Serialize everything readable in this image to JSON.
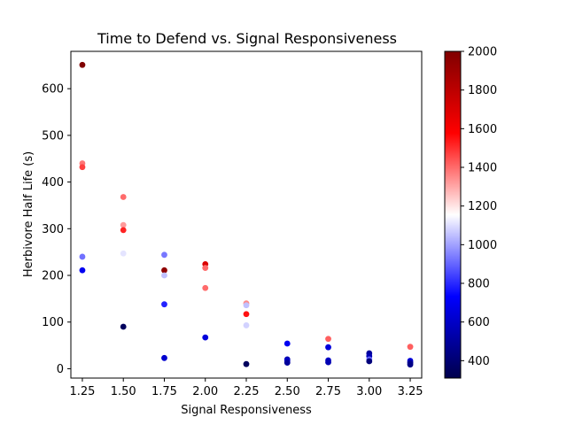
{
  "chart_data": {
    "type": "scatter",
    "title": "Time to Defend vs. Signal Responsiveness",
    "xlabel": "Signal Responsiveness",
    "ylabel": "Herbivore Half Life (s)",
    "xlim": [
      1.18,
      3.32
    ],
    "ylim": [
      -20,
      680
    ],
    "xticks": [
      "1.25",
      "1.50",
      "1.75",
      "2.00",
      "2.25",
      "2.50",
      "2.75",
      "3.00",
      "3.25"
    ],
    "yticks": [
      "0",
      "100",
      "200",
      "300",
      "400",
      "500",
      "600"
    ],
    "grid": false,
    "colormap": "seismic",
    "colorbar": {
      "min": 310,
      "max": 2000,
      "ticks": [
        "400",
        "600",
        "800",
        "1000",
        "1200",
        "1400",
        "1600",
        "1800",
        "2000"
      ],
      "stops": [
        "#00004c",
        "#0000ff",
        "#ffffff",
        "#ff0000",
        "#800000"
      ]
    },
    "points": [
      {
        "x": 1.25,
        "y": 651,
        "c": 2000
      },
      {
        "x": 1.25,
        "y": 440,
        "c": 1380
      },
      {
        "x": 1.25,
        "y": 432,
        "c": 1470
      },
      {
        "x": 1.25,
        "y": 240,
        "c": 920
      },
      {
        "x": 1.25,
        "y": 211,
        "c": 700
      },
      {
        "x": 1.5,
        "y": 368,
        "c": 1400
      },
      {
        "x": 1.5,
        "y": 308,
        "c": 1320
      },
      {
        "x": 1.5,
        "y": 297,
        "c": 1520
      },
      {
        "x": 1.5,
        "y": 247,
        "c": 1110
      },
      {
        "x": 1.5,
        "y": 90,
        "c": 350
      },
      {
        "x": 1.75,
        "y": 244,
        "c": 930
      },
      {
        "x": 1.75,
        "y": 211,
        "c": 1950
      },
      {
        "x": 1.75,
        "y": 200,
        "c": 1050
      },
      {
        "x": 1.75,
        "y": 138,
        "c": 790
      },
      {
        "x": 1.75,
        "y": 23,
        "c": 620
      },
      {
        "x": 2.0,
        "y": 224,
        "c": 1700
      },
      {
        "x": 2.0,
        "y": 216,
        "c": 1400
      },
      {
        "x": 2.0,
        "y": 173,
        "c": 1400
      },
      {
        "x": 2.0,
        "y": 67,
        "c": 650
      },
      {
        "x": 2.25,
        "y": 140,
        "c": 1350
      },
      {
        "x": 2.25,
        "y": 136,
        "c": 1050
      },
      {
        "x": 2.25,
        "y": 117,
        "c": 1550
      },
      {
        "x": 2.25,
        "y": 93,
        "c": 1080
      },
      {
        "x": 2.25,
        "y": 10,
        "c": 350
      },
      {
        "x": 2.5,
        "y": 54,
        "c": 700
      },
      {
        "x": 2.5,
        "y": 20,
        "c": 550
      },
      {
        "x": 2.5,
        "y": 17,
        "c": 600
      },
      {
        "x": 2.5,
        "y": 13,
        "c": 500
      },
      {
        "x": 2.75,
        "y": 64,
        "c": 1420
      },
      {
        "x": 2.75,
        "y": 46,
        "c": 650
      },
      {
        "x": 2.75,
        "y": 18,
        "c": 600
      },
      {
        "x": 2.75,
        "y": 14,
        "c": 550
      },
      {
        "x": 3.0,
        "y": 33,
        "c": 500
      },
      {
        "x": 3.0,
        "y": 27,
        "c": 550
      },
      {
        "x": 3.0,
        "y": 20,
        "c": 900
      },
      {
        "x": 3.0,
        "y": 16,
        "c": 420
      },
      {
        "x": 3.25,
        "y": 47,
        "c": 1420
      },
      {
        "x": 3.25,
        "y": 17,
        "c": 650
      },
      {
        "x": 3.25,
        "y": 13,
        "c": 500
      },
      {
        "x": 3.25,
        "y": 9,
        "c": 450
      }
    ]
  }
}
